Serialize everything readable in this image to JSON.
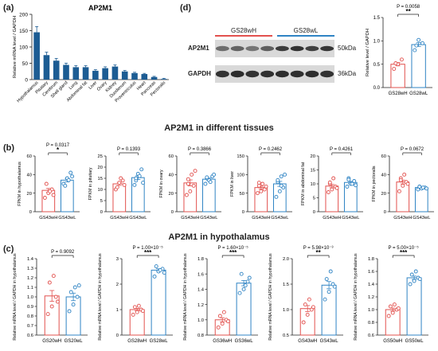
{
  "panel_labels": {
    "a": "(a)",
    "b": "(b)",
    "c": "(c)",
    "d": "(d)"
  },
  "headers": {
    "b_title": "AP2M1 in different tissues",
    "c_title": "AP2M1 in hypothalamus"
  },
  "colors": {
    "bar": "#1c5c93",
    "red": "#e2514e",
    "blue": "#2f84c4"
  },
  "western": {
    "group_left": "GS28wH",
    "group_right": "GS28wL",
    "protein_1": "AP2M1",
    "protein_2": "GAPDH",
    "size_1": "50kDa",
    "size_2": "36kDa"
  },
  "chart_data": [
    {
      "id": "a",
      "type": "bar",
      "title": "AP2M1",
      "ylabel": "Relative mRNA level / GAPDH",
      "ylim": [
        0,
        200
      ],
      "yticks": [
        "0",
        "50",
        "100",
        "150",
        "200"
      ],
      "categories": [
        "Hypothalamus",
        "Pituitary",
        "Cerebrum",
        "Shell gland",
        "Lung",
        "Abdominal fat",
        "Liver",
        "Ovary",
        "Kidney",
        "Duodenum",
        "Proventriculus",
        "Heart",
        "Pancreas",
        "Pectoralis"
      ],
      "values": [
        145,
        75,
        58,
        45,
        38,
        38,
        27,
        35,
        40,
        25,
        20,
        17,
        8,
        2
      ]
    },
    {
      "id": "d",
      "type": "scatter",
      "ylabel": "Relative level / GAPDH",
      "ylim": [
        0,
        1.5
      ],
      "yticks": [
        "0.0",
        "0.5",
        "1.0",
        "1.5"
      ],
      "categories": [
        "GS28wH",
        "GS28wL"
      ],
      "means": [
        0.5,
        0.92
      ],
      "points": [
        [
          0.4,
          0.5,
          0.6,
          0.52
        ],
        [
          0.8,
          1.02,
          0.95,
          0.9
        ]
      ],
      "sig": "**",
      "pval": "P = 0.0058"
    },
    {
      "id": "b1",
      "type": "scatter",
      "ylabel": "FPKM in hypothalamus",
      "ylim": [
        0,
        60
      ],
      "yticks": [
        "0",
        "20",
        "40",
        "60"
      ],
      "categories": [
        "GS43wH",
        "GS43wL"
      ],
      "means": [
        23,
        34
      ],
      "points": [
        [
          15,
          20,
          24,
          30,
          22,
          18
        ],
        [
          30,
          36,
          42,
          28,
          34,
          38
        ]
      ],
      "sig": "*",
      "pval": "P = 0.0317"
    },
    {
      "id": "b2",
      "type": "scatter",
      "ylabel": "FPKM in pituitary",
      "ylim": [
        0,
        25
      ],
      "yticks": [
        "0",
        "5",
        "10",
        "15",
        "20",
        "25"
      ],
      "categories": [
        "GS43wH",
        "GS43wL"
      ],
      "means": [
        12.5,
        15.3
      ],
      "points": [
        [
          10,
          13,
          14,
          11,
          15,
          12
        ],
        [
          12,
          17,
          19,
          14,
          16,
          13,
          15
        ]
      ],
      "sig": "",
      "pval": "P = 0.1393"
    },
    {
      "id": "b3",
      "type": "scatter",
      "ylabel": "FPKM in ovary",
      "ylim": [
        0,
        60
      ],
      "yticks": [
        "0",
        "20",
        "40",
        "60"
      ],
      "categories": [
        "GS43wH",
        "GS43wL"
      ],
      "means": [
        31,
        35
      ],
      "points": [
        [
          18,
          22,
          28,
          35,
          40,
          44,
          30
        ],
        [
          30,
          34,
          38,
          36,
          32,
          40,
          37
        ]
      ],
      "sig": "",
      "pval": "P = 0.3866"
    },
    {
      "id": "b4",
      "type": "scatter",
      "ylabel": "FPKM in liver",
      "ylim": [
        0,
        150
      ],
      "yticks": [
        "0",
        "50",
        "100",
        "150"
      ],
      "categories": [
        "GS43wH",
        "GS43wL"
      ],
      "means": [
        65,
        75
      ],
      "points": [
        [
          50,
          55,
          60,
          70,
          75,
          68,
          78
        ],
        [
          40,
          55,
          65,
          80,
          95,
          100,
          85,
          70
        ]
      ],
      "sig": "",
      "pval": "P = 0.2462"
    },
    {
      "id": "b5",
      "type": "scatter",
      "ylabel": "FPKM in abdominal fat",
      "ylim": [
        0,
        20
      ],
      "yticks": [
        "0",
        "5",
        "10",
        "15",
        "20"
      ],
      "categories": [
        "GS43wH",
        "GS43wL"
      ],
      "means": [
        9.2,
        10.5
      ],
      "points": [
        [
          7,
          8,
          9,
          10,
          12,
          8.5,
          10.5
        ],
        [
          9,
          10,
          11,
          12,
          10,
          9.5,
          11.5
        ]
      ],
      "sig": "",
      "pval": "P = 0.4261"
    },
    {
      "id": "b6",
      "type": "scatter",
      "ylabel": "FPKM in pectoralis",
      "ylim": [
        0,
        60
      ],
      "yticks": [
        "0",
        "20",
        "40",
        "60"
      ],
      "categories": [
        "GS43wH",
        "GS43wL"
      ],
      "means": [
        32,
        26
      ],
      "points": [
        [
          22,
          28,
          32,
          36,
          40,
          30,
          34
        ],
        [
          24,
          25,
          26,
          27,
          26,
          25,
          27
        ]
      ],
      "sig": "",
      "pval": "P = 0.0672"
    },
    {
      "id": "c1",
      "type": "scatter",
      "ylabel": "Relative mRNA level / GAPDH in hypothalamus",
      "ylim": [
        0.6,
        1.4
      ],
      "yticks": [
        "0.6",
        "0.7",
        "0.8",
        "0.9",
        "1.0",
        "1.1",
        "1.2",
        "1.3",
        "1.4"
      ],
      "categories": [
        "GS20wH",
        "GS20wL"
      ],
      "means": [
        1.01,
        1.0
      ],
      "points": [
        [
          0.82,
          0.9,
          1.0,
          1.15,
          1.22,
          0.95
        ],
        [
          0.85,
          0.92,
          1.0,
          1.05,
          1.1,
          1.12
        ]
      ],
      "sig": "",
      "pval": "P = 0.9092"
    },
    {
      "id": "c2",
      "type": "scatter",
      "ylabel": "Relative mRNA level / GAPDH in hypothalamus",
      "ylim": [
        0,
        3
      ],
      "yticks": [
        "0",
        "1",
        "2",
        "3"
      ],
      "categories": [
        "GS28wH",
        "GS28wL"
      ],
      "means": [
        1.0,
        2.55
      ],
      "points": [
        [
          0.8,
          0.9,
          1.0,
          1.1,
          1.15,
          0.95
        ],
        [
          2.3,
          2.5,
          2.6,
          2.7,
          2.55,
          2.45
        ]
      ],
      "sig": "***",
      "pval": "P = 1.00×10⁻⁵"
    },
    {
      "id": "c3",
      "type": "scatter",
      "ylabel": "Relative mRNA level / GAPDH in hypothalamus",
      "ylim": [
        0.8,
        1.8
      ],
      "yticks": [
        "0.8",
        "1.0",
        "1.2",
        "1.4",
        "1.6",
        "1.8"
      ],
      "categories": [
        "GS36wH",
        "GS36wL"
      ],
      "means": [
        1.0,
        1.48
      ],
      "points": [
        [
          0.9,
          0.95,
          1.0,
          1.05,
          1.1,
          0.98
        ],
        [
          1.35,
          1.4,
          1.5,
          1.6,
          1.45,
          1.55
        ]
      ],
      "sig": "***",
      "pval": "P = 1.60×10⁻⁵"
    },
    {
      "id": "c4",
      "type": "scatter",
      "ylabel": "Relative mRNA level / GAPDH in hypothalamus",
      "ylim": [
        0.5,
        2.0
      ],
      "yticks": [
        "0.5",
        "1.0",
        "1.5",
        "2.0"
      ],
      "categories": [
        "GS43wH",
        "GS43wL"
      ],
      "means": [
        1.02,
        1.48
      ],
      "points": [
        [
          0.75,
          0.9,
          1.0,
          1.1,
          1.2,
          1.05
        ],
        [
          1.2,
          1.35,
          1.5,
          1.6,
          1.75,
          1.45
        ]
      ],
      "sig": "**",
      "pval": "P = 5.98×10⁻³"
    },
    {
      "id": "c5",
      "type": "scatter",
      "ylabel": "Relative mRNA level / GAPDH in hypothalamus",
      "ylim": [
        0.6,
        1.8
      ],
      "yticks": [
        "0.6",
        "0.8",
        "1.0",
        "1.2",
        "1.4",
        "1.6",
        "1.8"
      ],
      "categories": [
        "GS50wH",
        "GS50wL"
      ],
      "means": [
        1.0,
        1.5
      ],
      "points": [
        [
          0.9,
          0.95,
          1.0,
          1.05,
          1.08,
          1.02
        ],
        [
          1.4,
          1.45,
          1.5,
          1.55,
          1.6,
          1.48
        ]
      ],
      "sig": "***",
      "pval": "P = 5.00×10⁻⁵"
    }
  ]
}
